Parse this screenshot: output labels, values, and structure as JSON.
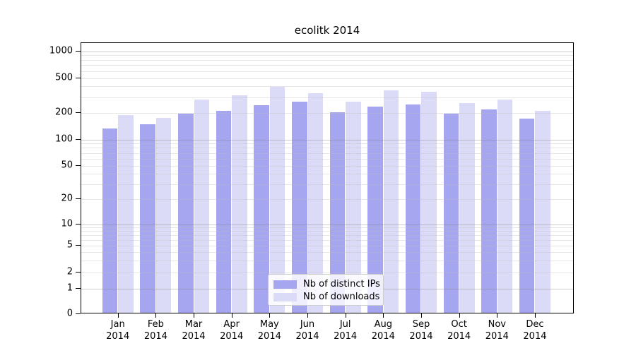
{
  "title": "ecolitk 2014",
  "chart_data": {
    "type": "bar",
    "title": "ecolitk 2014",
    "categories": [
      "Jan 2014",
      "Feb 2014",
      "Mar 2014",
      "Apr 2014",
      "May 2014",
      "Jun 2014",
      "Jul 2014",
      "Aug 2014",
      "Sep 2014",
      "Oct 2014",
      "Nov 2014",
      "Dec 2014"
    ],
    "series": [
      {
        "name": "Nb of distinct IPs",
        "color": "#a5a5f0",
        "values": [
          130,
          145,
          190,
          202,
          235,
          258,
          195,
          228,
          240,
          190,
          212,
          167
        ]
      },
      {
        "name": "Nb of downloads",
        "color": "#dbdbf8",
        "values": [
          182,
          170,
          273,
          308,
          385,
          327,
          260,
          348,
          339,
          249,
          276,
          205
        ]
      }
    ],
    "y_axis": {
      "scale": "log-like, compressed below 1, baseline 0",
      "tick_values": [
        1000,
        500,
        200,
        100,
        50,
        20,
        10,
        5,
        2,
        1,
        0
      ],
      "tick_labels": [
        "1000",
        "500",
        "200",
        "100",
        "50",
        "20",
        "10",
        "5",
        "2",
        "1",
        "0"
      ],
      "top_value": 1000
    },
    "x_axis": {
      "label_line2": "2014",
      "months": [
        "Jan",
        "Feb",
        "Mar",
        "Apr",
        "May",
        "Jun",
        "Jul",
        "Aug",
        "Sep",
        "Oct",
        "Nov",
        "Dec"
      ]
    },
    "legend": {
      "position": "bottom-center-inside",
      "entries": [
        "Nb of distinct IPs",
        "Nb of downloads"
      ]
    },
    "grid": "horizontal, major at powers of 10 (darker) + log minors, drawn over semi-transparent bars",
    "colors": {
      "bar_distinct_ips": "#a5a5f0",
      "bar_downloads": "#dbdbf8",
      "grid_major": "#c6c6c6",
      "grid_minor": "#e7e7e7",
      "frame": "#000000",
      "legend_border": "#cccccc",
      "background": "#ffffff",
      "text": "#000000"
    }
  }
}
